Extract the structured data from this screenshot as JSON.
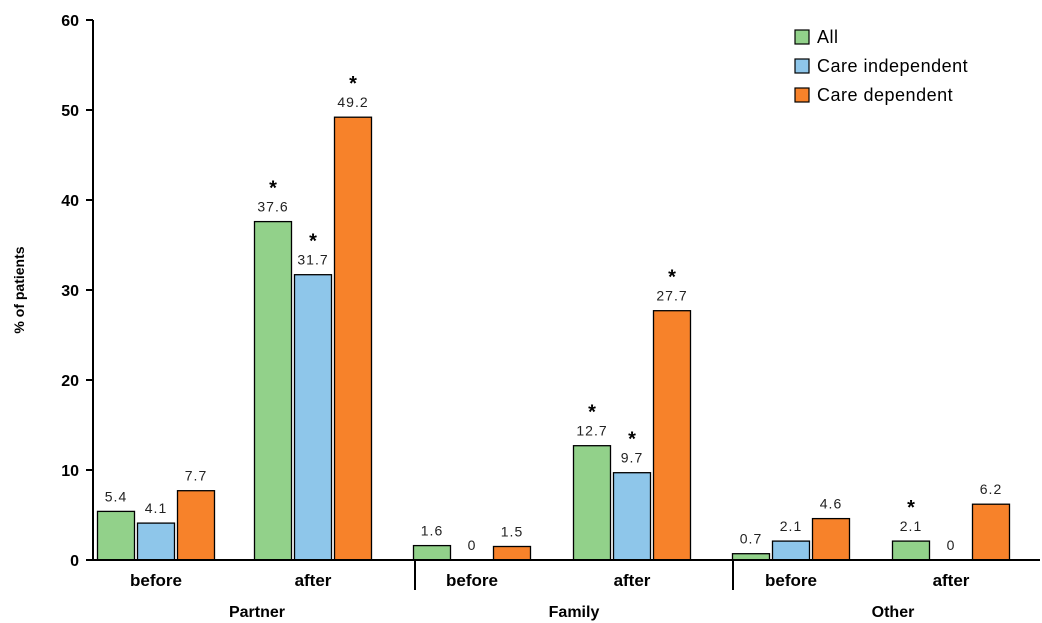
{
  "chart_data": {
    "type": "bar",
    "ylabel": "% of patients",
    "ylim": [
      0,
      60
    ],
    "yticks": [
      "0",
      "10",
      "20",
      "30",
      "40",
      "50",
      "60"
    ],
    "groups": [
      {
        "label": "Partner",
        "categories": [
          "before",
          "after"
        ]
      },
      {
        "label": "Family",
        "categories": [
          "before",
          "after"
        ]
      },
      {
        "label": "Other",
        "categories": [
          "before",
          "after"
        ]
      }
    ],
    "categories": [
      "before",
      "after",
      "before",
      "after",
      "before",
      "after"
    ],
    "series": [
      {
        "name": "All",
        "color": "#92d18a",
        "values": [
          5.4,
          37.6,
          1.6,
          12.7,
          0.7,
          2.1
        ],
        "labels": [
          "5.4",
          "37.6",
          "1.6",
          "12.7",
          "0.7",
          "2.1"
        ],
        "significant": [
          false,
          true,
          false,
          true,
          false,
          true
        ]
      },
      {
        "name": "Care independent",
        "color": "#8ec6ea",
        "values": [
          4.1,
          31.7,
          0,
          9.7,
          2.1,
          0
        ],
        "labels": [
          "4.1",
          "31.7",
          "0",
          "9.7",
          "2.1",
          "0"
        ],
        "significant": [
          false,
          true,
          false,
          true,
          false,
          false
        ]
      },
      {
        "name": "Care dependent",
        "color": "#f7822a",
        "values": [
          7.7,
          49.2,
          1.5,
          27.7,
          4.6,
          6.2
        ],
        "labels": [
          "7.7",
          "49.2",
          "1.5",
          "27.7",
          "4.6",
          "6.2"
        ],
        "significant": [
          false,
          true,
          false,
          true,
          false,
          false
        ]
      }
    ],
    "significance_marker": "*",
    "legend_position": "top-right",
    "grid": false
  }
}
